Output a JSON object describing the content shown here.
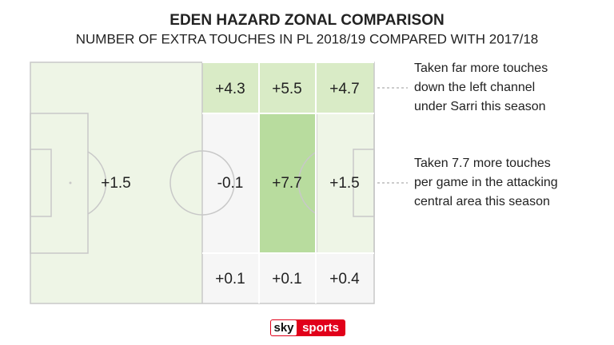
{
  "header": {
    "title": "EDEN HAZARD ZONAL COMPARISON",
    "subtitle": "NUMBER OF EXTRA TOUCHES IN PL 2018/19 COMPARED WITH 2017/18"
  },
  "zones": [
    {
      "label": "+1.5"
    },
    {
      "label": "+4.3"
    },
    {
      "label": "+5.5"
    },
    {
      "label": "+4.7"
    },
    {
      "label": "-0.1"
    },
    {
      "label": "+7.7"
    },
    {
      "label": "+1.5"
    },
    {
      "label": "+0.1"
    },
    {
      "label": "+0.1"
    },
    {
      "label": "+0.4"
    }
  ],
  "annotations": [
    {
      "lines": [
        "Taken far more touches",
        "down the left channel",
        "under Sarri this season"
      ]
    },
    {
      "lines": [
        "Taken 7.7 more touches",
        "per game in the attacking",
        "central area this season"
      ]
    }
  ],
  "logo": {
    "brand": "sky",
    "product": "sports"
  }
}
